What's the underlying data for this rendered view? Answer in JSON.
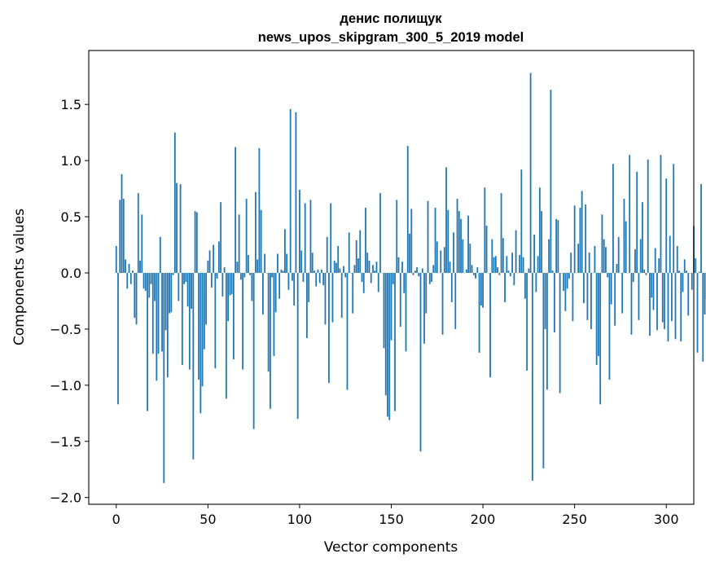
{
  "chart_data": {
    "type": "bar",
    "title_line1": "денис полищук",
    "title_line2": "news_upos_skipgram_300_5_2019 model",
    "xlabel": "Vector components",
    "ylabel": "Components values",
    "xlim": [
      -15,
      315
    ],
    "ylim": [
      -2.06,
      1.98
    ],
    "xticks": [
      0,
      50,
      100,
      150,
      200,
      250,
      300
    ],
    "xtick_labels": [
      "0",
      "50",
      "100",
      "150",
      "200",
      "250",
      "300"
    ],
    "yticks": [
      -2.0,
      -1.5,
      -1.0,
      -0.5,
      0.0,
      0.5,
      1.0,
      1.5
    ],
    "ytick_labels": [
      "−2.0",
      "−1.5",
      "−1.0",
      "−0.5",
      "0.0",
      "0.5",
      "1.0",
      "1.5"
    ],
    "bar_color": "#1f77b4",
    "grid": false,
    "values": [
      0.24,
      -1.17,
      0.65,
      0.88,
      0.66,
      0.12,
      -0.14,
      0.08,
      -0.1,
      0.02,
      -0.4,
      -0.46,
      0.71,
      0.11,
      0.52,
      -0.14,
      -0.16,
      -1.23,
      -0.22,
      -0.1,
      -0.72,
      -0.25,
      -0.96,
      -0.72,
      0.32,
      -0.7,
      -1.87,
      -0.51,
      -0.93,
      -0.36,
      -0.35,
      -0.02,
      1.25,
      0.8,
      -0.25,
      0.79,
      -0.82,
      -0.1,
      -0.08,
      -0.3,
      -0.86,
      -0.32,
      -1.66,
      0.55,
      0.54,
      -0.95,
      -1.25,
      -1.01,
      -0.68,
      -0.46,
      0.11,
      0.2,
      -0.13,
      0.25,
      -0.85,
      -0.05,
      0.28,
      0.63,
      -0.21,
      0.05,
      -1.12,
      -0.43,
      -0.2,
      -0.19,
      -0.77,
      1.12,
      0.1,
      0.52,
      -0.06,
      -0.86,
      -0.04,
      0.66,
      0.16,
      -0.02,
      -0.25,
      -1.39,
      0.72,
      0.12,
      1.11,
      0.56,
      -0.37,
      0.17,
      0.0,
      -0.88,
      -1.21,
      -0.04,
      -0.74,
      -0.35,
      0.17,
      -0.23,
      0.03,
      0.02,
      0.39,
      0.17,
      -0.15,
      1.46,
      -0.07,
      -0.29,
      1.43,
      -1.3,
      0.74,
      0.2,
      -0.08,
      0.62,
      -0.58,
      -0.26,
      0.65,
      0.18,
      0.02,
      -0.12,
      0.03,
      -0.09,
      0.03,
      -0.11,
      -0.46,
      0.32,
      -0.98,
      0.62,
      -0.44,
      0.11,
      0.09,
      0.24,
      0.04,
      -0.4,
      0.06,
      -0.04,
      -1.04,
      0.36,
      0.0,
      -0.36,
      0.07,
      0.29,
      0.13,
      0.38,
      -0.08,
      -0.18,
      0.58,
      0.18,
      0.11,
      -0.09,
      0.07,
      0.02,
      0.1,
      -0.17,
      0.71,
      0.0,
      -0.67,
      -1.09,
      -1.28,
      -1.31,
      -0.6,
      -0.1,
      -1.23,
      0.65,
      0.14,
      -0.48,
      0.1,
      -0.18,
      -0.7,
      1.13,
      0.35,
      0.57,
      -0.02,
      0.02,
      0.05,
      -0.03,
      -1.59,
      0.04,
      -0.63,
      -0.36,
      0.64,
      -0.1,
      -0.08,
      0.07,
      0.58,
      0.28,
      0.0,
      0.2,
      -0.55,
      0.23,
      0.94,
      0.56,
      0.1,
      -0.26,
      0.36,
      -0.5,
      0.66,
      0.55,
      0.48,
      0.3,
      0.0,
      0.03,
      0.51,
      0.26,
      0.07,
      -0.02,
      -0.05,
      0.05,
      -0.71,
      -0.29,
      -0.31,
      0.76,
      0.42,
      0.0,
      -0.93,
      0.3,
      0.14,
      0.15,
      0.05,
      -0.02,
      0.71,
      0.31,
      -0.26,
      0.15,
      0.02,
      -0.03,
      0.18,
      -0.11,
      0.38,
      0.0,
      0.16,
      0.92,
      0.14,
      -0.23,
      -0.87,
      0.04,
      1.78,
      -1.85,
      0.34,
      -0.17,
      0.15,
      0.76,
      0.55,
      -1.74,
      -0.5,
      -1.04,
      0.3,
      1.63,
      0.02,
      -0.53,
      0.48,
      0.47,
      -1.07,
      0.0,
      -0.16,
      -0.34,
      -0.14,
      -0.05,
      0.18,
      -0.43,
      0.6,
      0.0,
      0.26,
      0.58,
      0.73,
      -0.27,
      0.61,
      -0.42,
      0.18,
      -0.5,
      0.0,
      0.24,
      -0.82,
      -0.74,
      -1.17,
      0.52,
      0.3,
      0.23,
      -0.04,
      -0.95,
      -0.28,
      0.97,
      -0.47,
      0.08,
      0.32,
      0.0,
      -0.36,
      0.66,
      0.46,
      0.0,
      1.05,
      -0.55,
      -0.08,
      0.21,
      0.9,
      -0.42,
      0.3,
      0.63,
      0.03,
      -0.02,
      1.01,
      -0.56,
      -0.22,
      -0.33,
      0.22,
      -0.51,
      0.13,
      1.05,
      -0.44,
      -0.5,
      0.84,
      -0.61,
      0.33,
      -0.43,
      0.97,
      -0.59,
      0.24,
      0.02,
      -0.61,
      -0.17,
      0.12,
      0.02,
      -0.38,
      0.0,
      -0.15,
      0.42,
      0.13,
      -0.71,
      0.01,
      0.79,
      -0.79,
      -0.37,
      -0.23
    ]
  }
}
